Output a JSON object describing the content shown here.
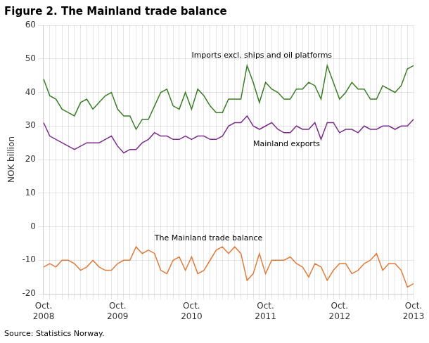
{
  "chart_data": {
    "type": "line",
    "title": "Figure 2. The Mainland trade balance",
    "y_label": "NOK billion",
    "source": "Source: Statistics Norway.",
    "categories": [
      "Oct.\n2008",
      null,
      null,
      null,
      null,
      null,
      null,
      null,
      null,
      null,
      null,
      null,
      "Oct.\n2009",
      null,
      null,
      null,
      null,
      null,
      null,
      null,
      null,
      null,
      null,
      null,
      "Oct.\n2010",
      null,
      null,
      null,
      null,
      null,
      null,
      null,
      null,
      null,
      null,
      null,
      "Oct.\n2011",
      null,
      null,
      null,
      null,
      null,
      null,
      null,
      null,
      null,
      null,
      null,
      "Oct.\n2012",
      null,
      null,
      null,
      null,
      null,
      null,
      null,
      null,
      null,
      null,
      null,
      "Oct.\n2013"
    ],
    "series": [
      {
        "name": "Imports excl. ships and oil platforms",
        "color": "#3a7d24",
        "values": [
          44,
          39,
          38,
          35,
          34,
          33,
          37,
          38,
          35,
          37,
          39,
          40,
          35,
          33,
          33,
          29,
          32,
          32,
          36,
          40,
          41,
          36,
          35,
          40,
          35,
          41,
          39,
          36,
          34,
          34,
          38,
          38,
          38,
          48,
          43,
          37,
          43,
          41,
          40,
          38,
          38,
          41,
          41,
          43,
          42,
          38,
          48,
          43,
          38,
          40,
          43,
          41,
          41,
          38,
          38,
          42,
          41,
          40,
          42,
          47,
          48
        ]
      },
      {
        "name": "Mainland exports",
        "color": "#7b2d8b",
        "values": [
          31,
          27,
          26,
          25,
          24,
          23,
          24,
          25,
          25,
          25,
          26,
          27,
          24,
          22,
          23,
          23,
          25,
          26,
          28,
          27,
          27,
          26,
          26,
          27,
          26,
          27,
          27,
          26,
          26,
          27,
          30,
          31,
          31,
          33,
          30,
          29,
          30,
          31,
          29,
          28,
          28,
          30,
          29,
          29,
          31,
          26,
          31,
          31,
          28,
          29,
          29,
          28,
          30,
          29,
          29,
          30,
          30,
          29,
          30,
          30,
          32
        ]
      },
      {
        "name": "The Mainland trade balance",
        "color": "#e07b39",
        "values": [
          -12,
          -11,
          -12,
          -10,
          -10,
          -11,
          -13,
          -12,
          -10,
          -12,
          -13,
          -13,
          -11,
          -10,
          -10,
          -6,
          -8,
          -7,
          -8,
          -13,
          -14,
          -10,
          -9,
          -13,
          -9,
          -14,
          -13,
          -10,
          -7,
          -6,
          -8,
          -6,
          -8,
          -16,
          -14,
          -8,
          -14,
          -10,
          -10,
          -10,
          -9,
          -11,
          -12,
          -15,
          -11,
          -12,
          -16,
          -13,
          -11,
          -11,
          -14,
          -13,
          -11,
          -10,
          -8,
          -13,
          -11,
          -11,
          -13,
          -18,
          -17
        ]
      }
    ],
    "annotations": [
      {
        "text": "Imports excl. ships and oil platforms",
        "x": 24,
        "y": 51
      },
      {
        "text": "Mainland exports",
        "x": 34,
        "y": 24.5
      },
      {
        "text": "The Mainland trade balance",
        "x": 18,
        "y": -3.5
      }
    ],
    "ylim": [
      -20,
      60
    ],
    "yticks": [
      -20,
      -10,
      0,
      10,
      20,
      30,
      40,
      50,
      60
    ],
    "grid": true
  }
}
